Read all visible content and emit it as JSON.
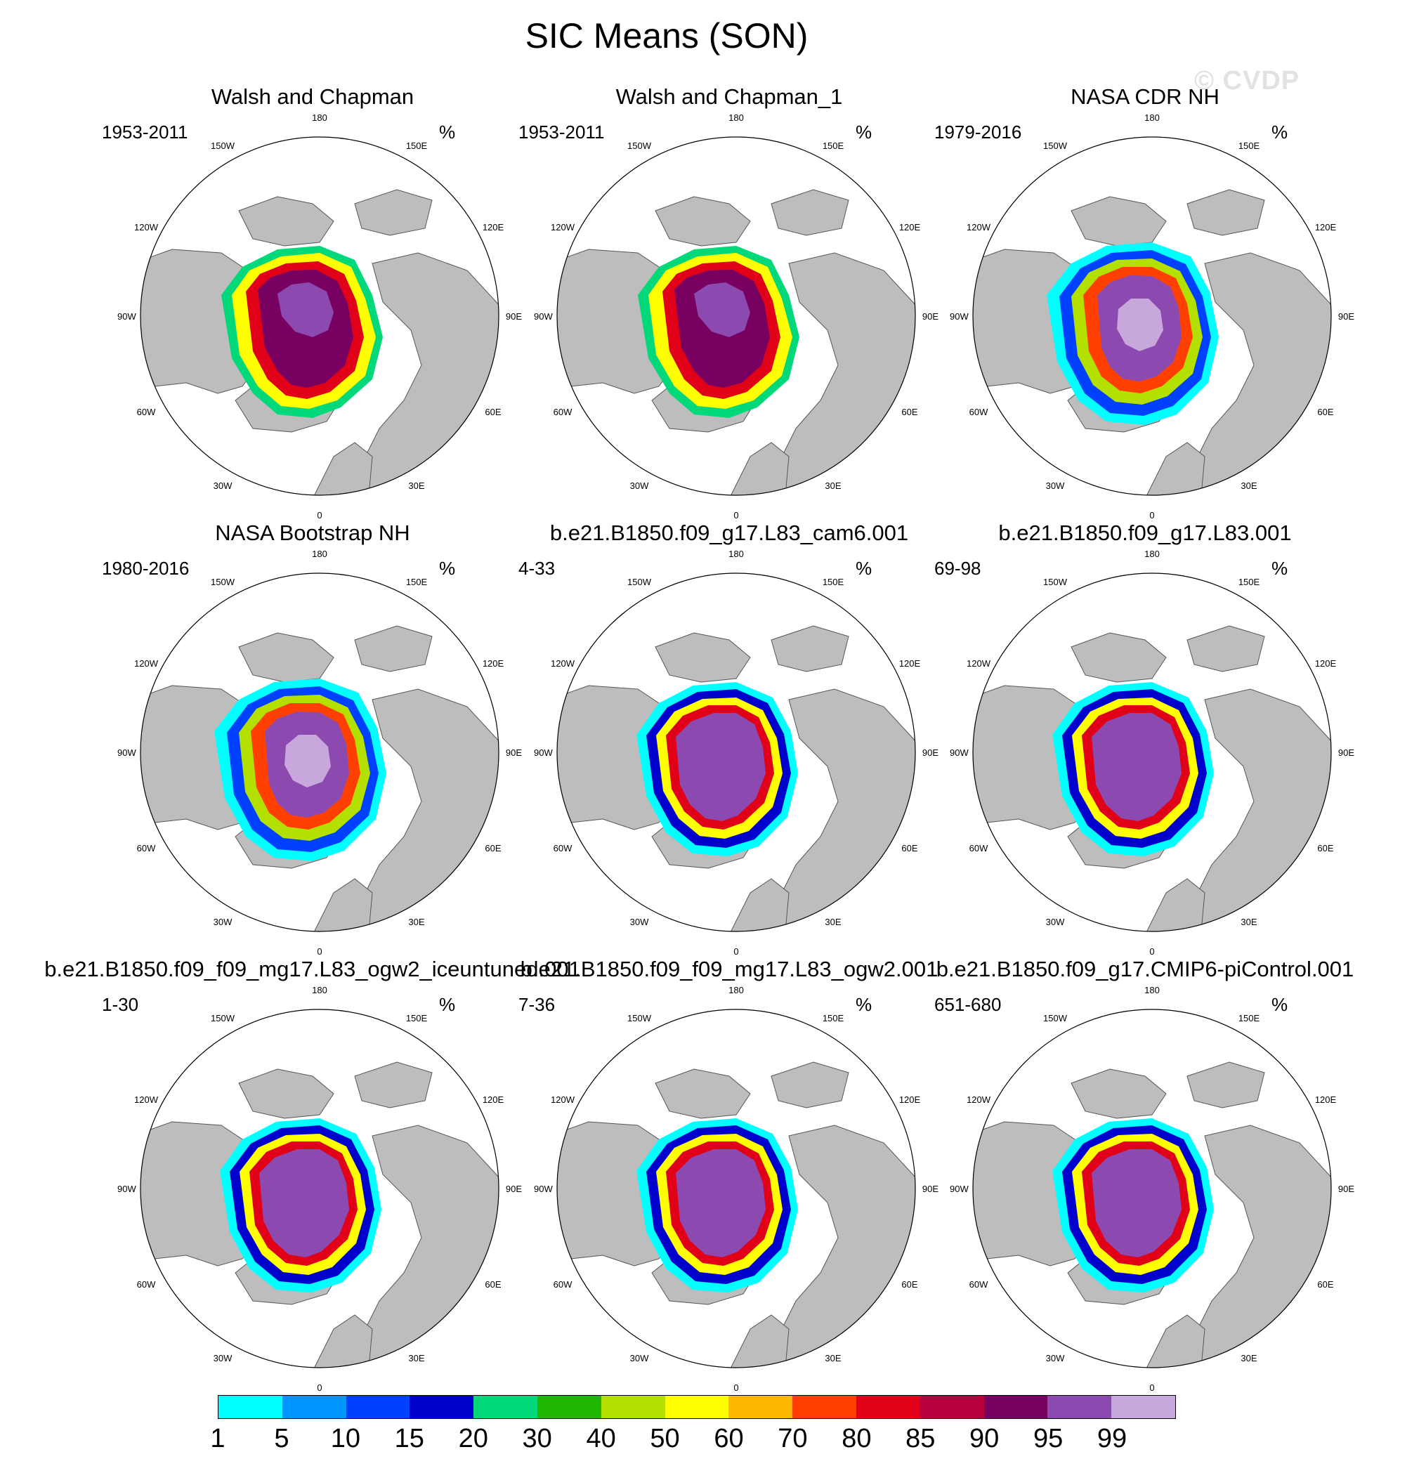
{
  "title": "SIC Means (SON)",
  "watermark": "© CVDP",
  "units": "%",
  "map_labels": {
    "top": "180",
    "bottom": "0",
    "left": "90W",
    "right": "90E",
    "upper_left_1": "150W",
    "upper_left_2": "120W",
    "upper_right_1": "150E",
    "upper_right_2": "120E",
    "lower_left_1": "60W",
    "lower_left_2": "30W",
    "lower_right_1": "60E",
    "lower_right_2": "30E"
  },
  "panels": [
    {
      "title": "Walsh and Chapman",
      "years": "1953-2011",
      "style": "obs1"
    },
    {
      "title": "Walsh and Chapman_1",
      "years": "1953-2011",
      "style": "obs1"
    },
    {
      "title": "NASA CDR NH",
      "years": "1979-2016",
      "style": "obs2"
    },
    {
      "title": "NASA Bootstrap NH",
      "years": "1980-2016",
      "style": "obs2"
    },
    {
      "title": "b.e21.B1850.f09_g17.L83_cam6.001",
      "years": "4-33",
      "style": "model"
    },
    {
      "title": "b.e21.B1850.f09_g17.L83.001",
      "years": "69-98",
      "style": "model"
    },
    {
      "title": "b.e21.B1850.f09_f09_mg17.L83_ogw2_iceuntuned.001",
      "years": "1-30",
      "style": "model"
    },
    {
      "title": "b.e21.B1850.f09_f09_mg17.L83_ogw2.001",
      "years": "7-36",
      "style": "model"
    },
    {
      "title": "b.e21.B1850.f09_g17.CMIP6-piControl.001",
      "years": "651-680",
      "style": "model"
    }
  ],
  "colorbar": {
    "colors": [
      "#00ffff",
      "#0096ff",
      "#0040ff",
      "#0000cd",
      "#00d87a",
      "#20b800",
      "#b4e000",
      "#ffff00",
      "#ffb800",
      "#ff4000",
      "#e00018",
      "#b8003c",
      "#780060",
      "#8c4ab0",
      "#c8a8dc"
    ],
    "labels": [
      "1",
      "5",
      "10",
      "15",
      "20",
      "30",
      "40",
      "50",
      "60",
      "70",
      "80",
      "85",
      "90",
      "95",
      "99"
    ]
  }
}
